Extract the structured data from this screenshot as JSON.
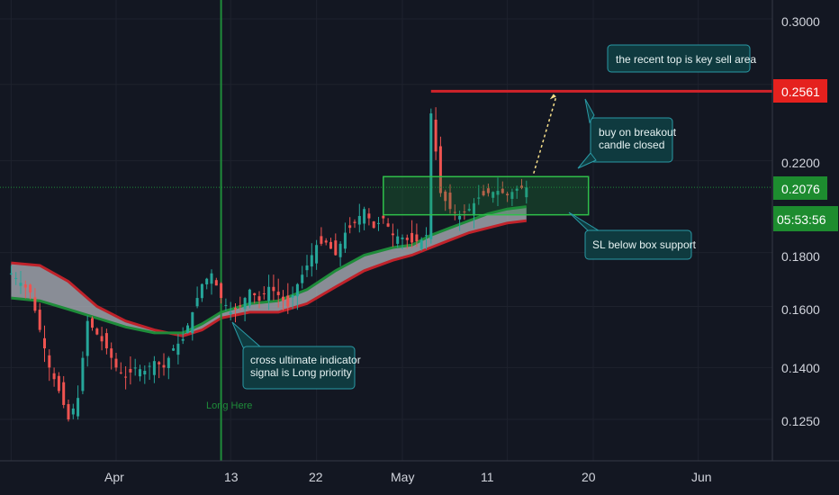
{
  "chart_data": {
    "type": "candlestick",
    "price_axis": {
      "ticks": [
        "0.3000",
        "0.2200",
        "0.1800",
        "0.1600",
        "0.1400",
        "0.1250"
      ],
      "scale": "log",
      "range": [
        0.115,
        0.32
      ]
    },
    "time_axis": {
      "ticks": [
        "Apr",
        "13",
        "22",
        "May",
        "11",
        "20",
        "Jun"
      ]
    },
    "badges": {
      "resistance": "0.2561",
      "last_price": "0.2076",
      "countdown": "05:53:56"
    },
    "resistance_level": 0.2561,
    "last_price": 0.2076,
    "breakout_box": {
      "start_day": 59.0,
      "end_day": 80.5,
      "low": 0.1955,
      "high": 0.2125
    },
    "signal_day": 42,
    "signal_label": "Long Here",
    "annotations": {
      "top_note": "the recent top is key sell area",
      "breakout_note": [
        "buy on breakout",
        "candle closed"
      ],
      "sl_note": "SL below box support",
      "signal_note": [
        "cross ultimate indicator",
        "signal is Long priority"
      ]
    },
    "close_path": [
      [
        20,
        0.172
      ],
      [
        22,
        0.165
      ],
      [
        23,
        0.152
      ],
      [
        24,
        0.14
      ],
      [
        25,
        0.133
      ],
      [
        26,
        0.125
      ],
      [
        27,
        0.131
      ],
      [
        28,
        0.155
      ],
      [
        30,
        0.146
      ],
      [
        31,
        0.14
      ],
      [
        32,
        0.137
      ],
      [
        33,
        0.14
      ],
      [
        34,
        0.139
      ],
      [
        35,
        0.142
      ],
      [
        36,
        0.14
      ],
      [
        37,
        0.146
      ],
      [
        38,
        0.149
      ],
      [
        39,
        0.158
      ],
      [
        40,
        0.168
      ],
      [
        41,
        0.172
      ],
      [
        42,
        0.163
      ],
      [
        43,
        0.158
      ],
      [
        44,
        0.16
      ],
      [
        45,
        0.166
      ],
      [
        46,
        0.162
      ],
      [
        47,
        0.167
      ],
      [
        48,
        0.164
      ],
      [
        49,
        0.16
      ],
      [
        50,
        0.168
      ],
      [
        51,
        0.175
      ],
      [
        52,
        0.183
      ],
      [
        53,
        0.184
      ],
      [
        54,
        0.179
      ],
      [
        55,
        0.188
      ],
      [
        56,
        0.192
      ],
      [
        57,
        0.198
      ],
      [
        58,
        0.19
      ],
      [
        59,
        0.194
      ],
      [
        60,
        0.187
      ],
      [
        61,
        0.186
      ],
      [
        62,
        0.184
      ],
      [
        63,
        0.185
      ],
      [
        63.5,
        0.187
      ],
      [
        64,
        0.244
      ],
      [
        65,
        0.205
      ],
      [
        66,
        0.198
      ],
      [
        67,
        0.195
      ],
      [
        68,
        0.198
      ],
      [
        69,
        0.203
      ],
      [
        70,
        0.205
      ],
      [
        71,
        0.206
      ],
      [
        72,
        0.204
      ],
      [
        73,
        0.207
      ],
      [
        74,
        0.2076
      ]
    ],
    "ema_path": [
      [
        20,
        0.163
      ],
      [
        23,
        0.162
      ],
      [
        26,
        0.159
      ],
      [
        29,
        0.156
      ],
      [
        32,
        0.153
      ],
      [
        35,
        0.151
      ],
      [
        38,
        0.151
      ],
      [
        40,
        0.154
      ],
      [
        42,
        0.158
      ],
      [
        45,
        0.161
      ],
      [
        48,
        0.162
      ],
      [
        51,
        0.166
      ],
      [
        54,
        0.173
      ],
      [
        57,
        0.179
      ],
      [
        60,
        0.182
      ],
      [
        62,
        0.183
      ],
      [
        64,
        0.187
      ],
      [
        66,
        0.19
      ],
      [
        68,
        0.193
      ],
      [
        70,
        0.196
      ],
      [
        72,
        0.198
      ],
      [
        74,
        0.199
      ]
    ],
    "sma_path": [
      [
        20,
        0.176
      ],
      [
        23,
        0.175
      ],
      [
        26,
        0.169
      ],
      [
        29,
        0.16
      ],
      [
        32,
        0.155
      ],
      [
        35,
        0.152
      ],
      [
        38,
        0.15
      ],
      [
        40,
        0.152
      ],
      [
        42,
        0.156
      ],
      [
        45,
        0.158
      ],
      [
        48,
        0.158
      ],
      [
        51,
        0.161
      ],
      [
        54,
        0.167
      ],
      [
        57,
        0.173
      ],
      [
        60,
        0.177
      ],
      [
        62,
        0.179
      ],
      [
        64,
        0.182
      ],
      [
        66,
        0.185
      ],
      [
        68,
        0.188
      ],
      [
        70,
        0.19
      ],
      [
        72,
        0.192
      ],
      [
        74,
        0.193
      ]
    ]
  }
}
